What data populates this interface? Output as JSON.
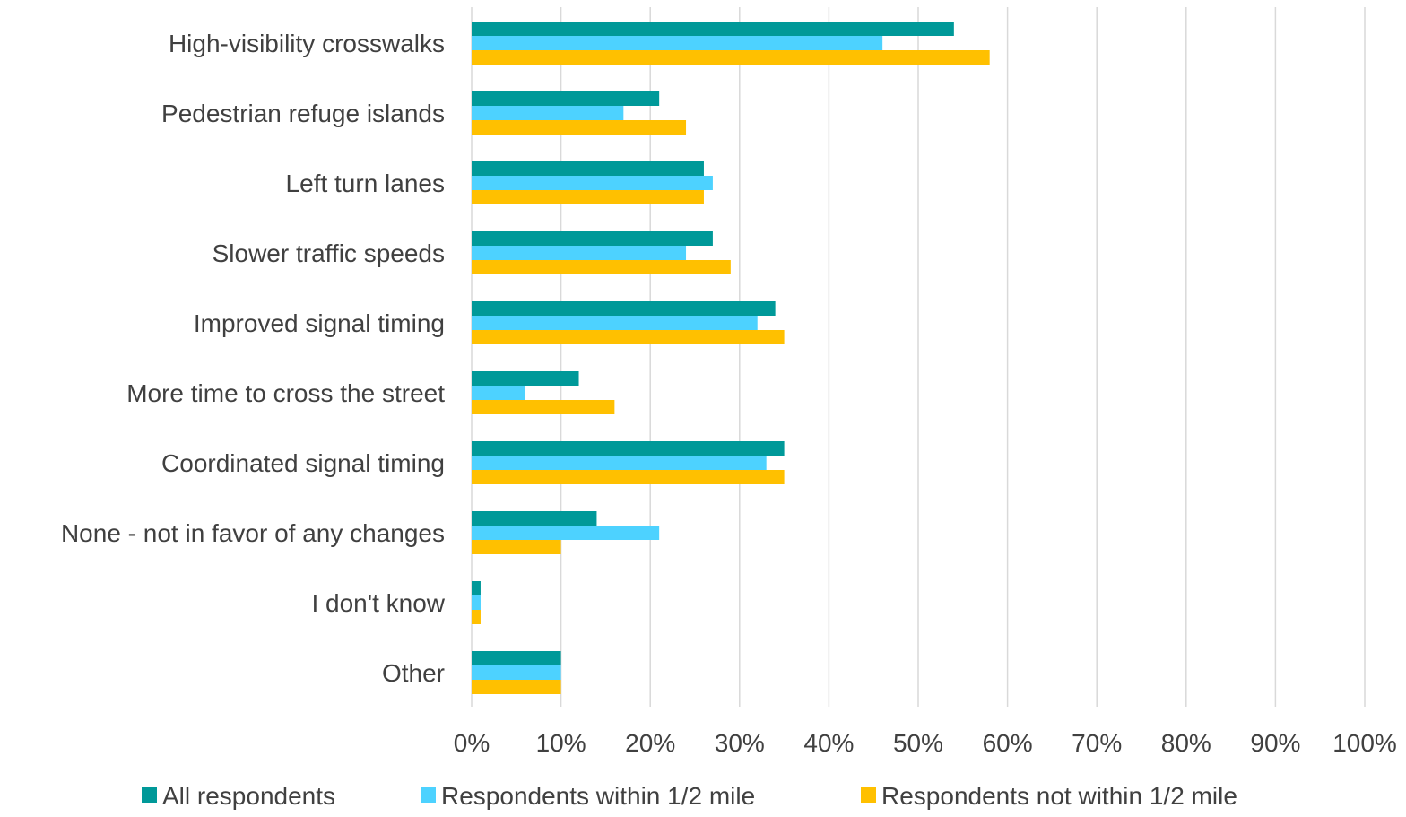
{
  "chart_data": {
    "type": "bar",
    "orientation": "horizontal",
    "title": "",
    "xlabel": "",
    "ylabel": "",
    "xlim": [
      0,
      100
    ],
    "tick_step": 10,
    "tick_labels": [
      "0%",
      "10%",
      "20%",
      "30%",
      "40%",
      "50%",
      "60%",
      "70%",
      "80%",
      "90%",
      "100%"
    ],
    "grid": true,
    "legend_position": "bottom",
    "categories": [
      "High-visibility crosswalks",
      "Pedestrian refuge islands",
      "Left turn lanes",
      "Slower traffic speeds",
      "Improved signal timing",
      "More time to cross the street",
      "Coordinated signal timing",
      "None - not in favor of any changes",
      "I don't know",
      "Other"
    ],
    "series": [
      {
        "name": "All respondents",
        "color": "#009999",
        "values": [
          54,
          21,
          26,
          27,
          34,
          12,
          35,
          14,
          1,
          10
        ]
      },
      {
        "name": "Respondents within 1/2 mile",
        "color": "#4dd2ff",
        "values": [
          46,
          17,
          27,
          24,
          32,
          6,
          33,
          21,
          1,
          10
        ]
      },
      {
        "name": "Respondents not within 1/2 mile",
        "color": "#ffc000",
        "values": [
          58,
          24,
          26,
          29,
          35,
          16,
          35,
          10,
          1,
          10
        ]
      }
    ],
    "gridline_color": "#d9d9d9"
  }
}
